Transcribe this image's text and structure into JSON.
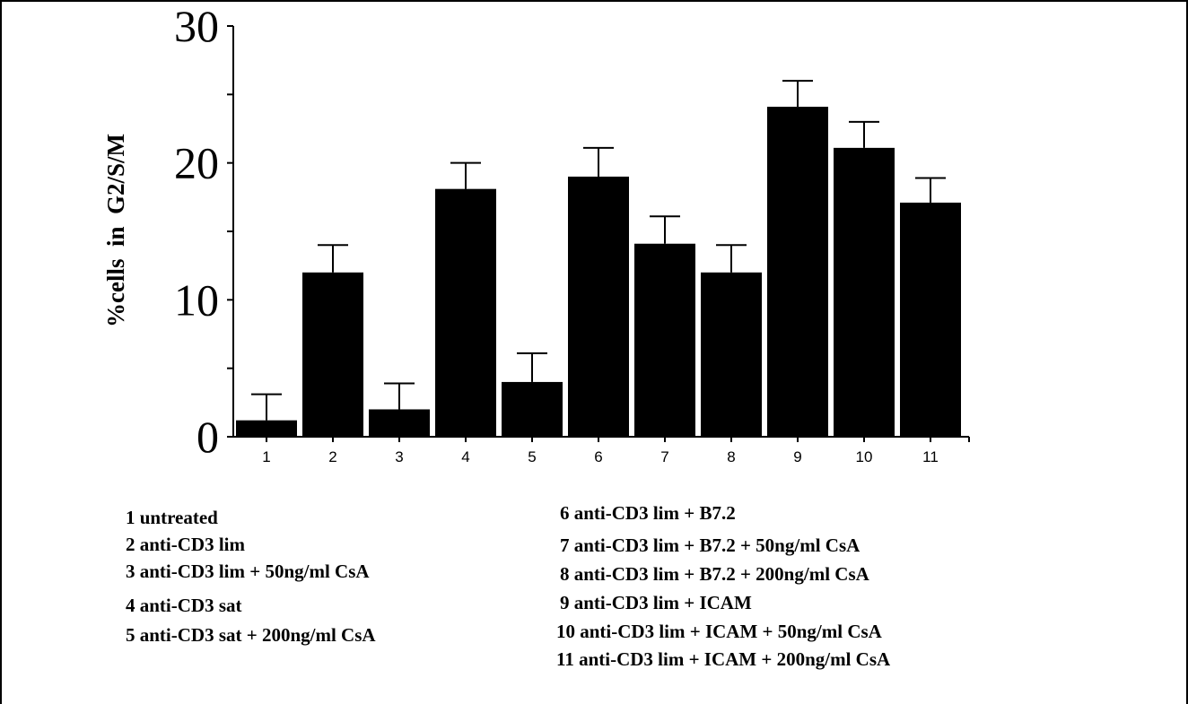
{
  "chart_data": {
    "type": "bar",
    "ylabel": "%cells  in  G2/S/M",
    "ylim": [
      0,
      30
    ],
    "y_ticks": [
      "0",
      "10",
      "20",
      "30"
    ],
    "categories": [
      "1",
      "2",
      "3",
      "4",
      "5",
      "6",
      "7",
      "8",
      "9",
      "10",
      "11"
    ],
    "values": [
      1.2,
      12,
      2,
      18.1,
      4,
      19,
      14.1,
      12,
      24.1,
      21.1,
      17.1
    ],
    "errors": [
      1.9,
      2,
      1.9,
      1.9,
      2.1,
      2.1,
      2,
      2,
      1.9,
      1.9,
      1.8
    ],
    "bar_color": "#000000",
    "grid": false
  },
  "legend": {
    "items": [
      "1 untreated",
      "2 anti-CD3 lim",
      "3 anti-CD3 lim + 50ng/ml CsA",
      "4 anti-CD3 sat",
      "5 anti-CD3 sat + 200ng/ml CsA",
      "6 anti-CD3 lim + B7.2",
      "7 anti-CD3 lim + B7.2 + 50ng/ml CsA",
      "8 anti-CD3 lim  + B7.2 + 200ng/ml CsA",
      "9 anti-CD3 lim + ICAM",
      "10 anti-CD3 lim + ICAM + 50ng/ml CsA",
      "11 anti-CD3 lim + ICAM + 200ng/ml CsA"
    ]
  }
}
